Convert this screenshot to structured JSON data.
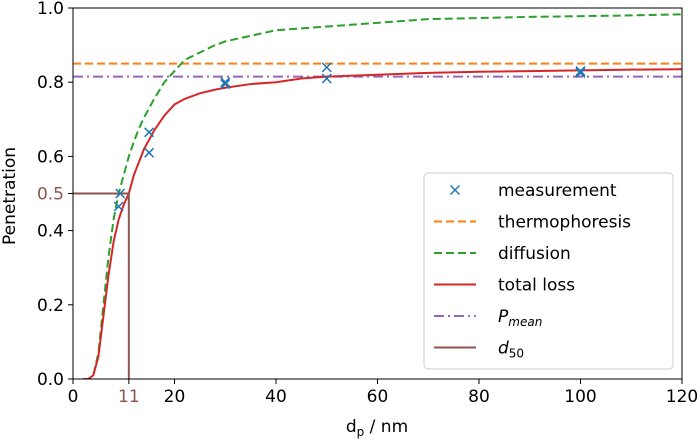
{
  "chart_data": {
    "type": "line",
    "xlabel_main": "d",
    "xlabel_sub": "p",
    "xlabel_rest": " / nm",
    "ylabel": "Penetration",
    "xlim": [
      0,
      120
    ],
    "ylim": [
      0,
      1.0
    ],
    "x_ticks": [
      0,
      11,
      20,
      40,
      60,
      80,
      100,
      120
    ],
    "x_tick_labels": [
      "0",
      "11",
      "20",
      "40",
      "60",
      "80",
      "100",
      "120"
    ],
    "y_ticks": [
      0.0,
      0.2,
      0.4,
      0.5,
      0.6,
      0.8,
      1.0
    ],
    "y_tick_labels": [
      "0.0",
      "0.2",
      "0.4",
      "0.5",
      "0.6",
      "0.8",
      "1.0"
    ],
    "highlight_tick_color": "#8c564b",
    "legend_position": "lower right",
    "series": [
      {
        "name": "measurement",
        "kind": "scatter",
        "color": "#1f77b4",
        "marker": "x",
        "points": [
          [
            9,
            0.465
          ],
          [
            9.3,
            0.5
          ],
          [
            15,
            0.665
          ],
          [
            15,
            0.61
          ],
          [
            30,
            0.795
          ],
          [
            30,
            0.8
          ],
          [
            50,
            0.84
          ],
          [
            50,
            0.81
          ],
          [
            100,
            0.825
          ],
          [
            100,
            0.83
          ]
        ]
      },
      {
        "name": "thermophoresis",
        "kind": "line",
        "color": "#ff7f0e",
        "dash": "dashed",
        "x": [
          0,
          120
        ],
        "y": [
          0.85,
          0.85
        ]
      },
      {
        "name": "diffusion",
        "kind": "line",
        "color": "#2ca02c",
        "dash": "dashed",
        "x": [
          2,
          3,
          4,
          5,
          6,
          7,
          8,
          9,
          10,
          11,
          12,
          13,
          14,
          15,
          16,
          18,
          20,
          22,
          25,
          28,
          30,
          35,
          40,
          45,
          50,
          60,
          70,
          80,
          90,
          100,
          110,
          120
        ],
        "y": [
          0.0,
          0.0,
          0.01,
          0.07,
          0.2,
          0.33,
          0.43,
          0.5,
          0.55,
          0.6,
          0.64,
          0.675,
          0.705,
          0.73,
          0.755,
          0.8,
          0.83,
          0.86,
          0.88,
          0.9,
          0.91,
          0.925,
          0.94,
          0.945,
          0.95,
          0.96,
          0.97,
          0.973,
          0.976,
          0.978,
          0.98,
          0.983
        ]
      },
      {
        "name": "total loss",
        "kind": "line",
        "color": "#d62728",
        "dash": "solid",
        "x": [
          2,
          3,
          4,
          5,
          6,
          7,
          8,
          9,
          10,
          11,
          12,
          13,
          14,
          15,
          16,
          18,
          20,
          22,
          25,
          28,
          30,
          35,
          40,
          45,
          50,
          60,
          70,
          80,
          90,
          100,
          110,
          120
        ],
        "y": [
          0.0,
          0.0,
          0.01,
          0.06,
          0.17,
          0.28,
          0.37,
          0.43,
          0.47,
          0.5,
          0.55,
          0.585,
          0.62,
          0.645,
          0.67,
          0.71,
          0.74,
          0.755,
          0.77,
          0.78,
          0.785,
          0.795,
          0.8,
          0.81,
          0.815,
          0.82,
          0.825,
          0.828,
          0.83,
          0.832,
          0.834,
          0.835
        ]
      },
      {
        "name": "P",
        "name_sub": "mean",
        "kind": "line",
        "color": "#9467bd",
        "dash": "dashdot",
        "x": [
          0,
          120
        ],
        "y": [
          0.815,
          0.815
        ]
      },
      {
        "name": "d",
        "name_sub": "50",
        "kind": "step",
        "color": "#8c564b",
        "dash": "solid",
        "x": [
          0,
          11,
          11
        ],
        "y": [
          0.5,
          0.5,
          0.0
        ]
      }
    ]
  }
}
